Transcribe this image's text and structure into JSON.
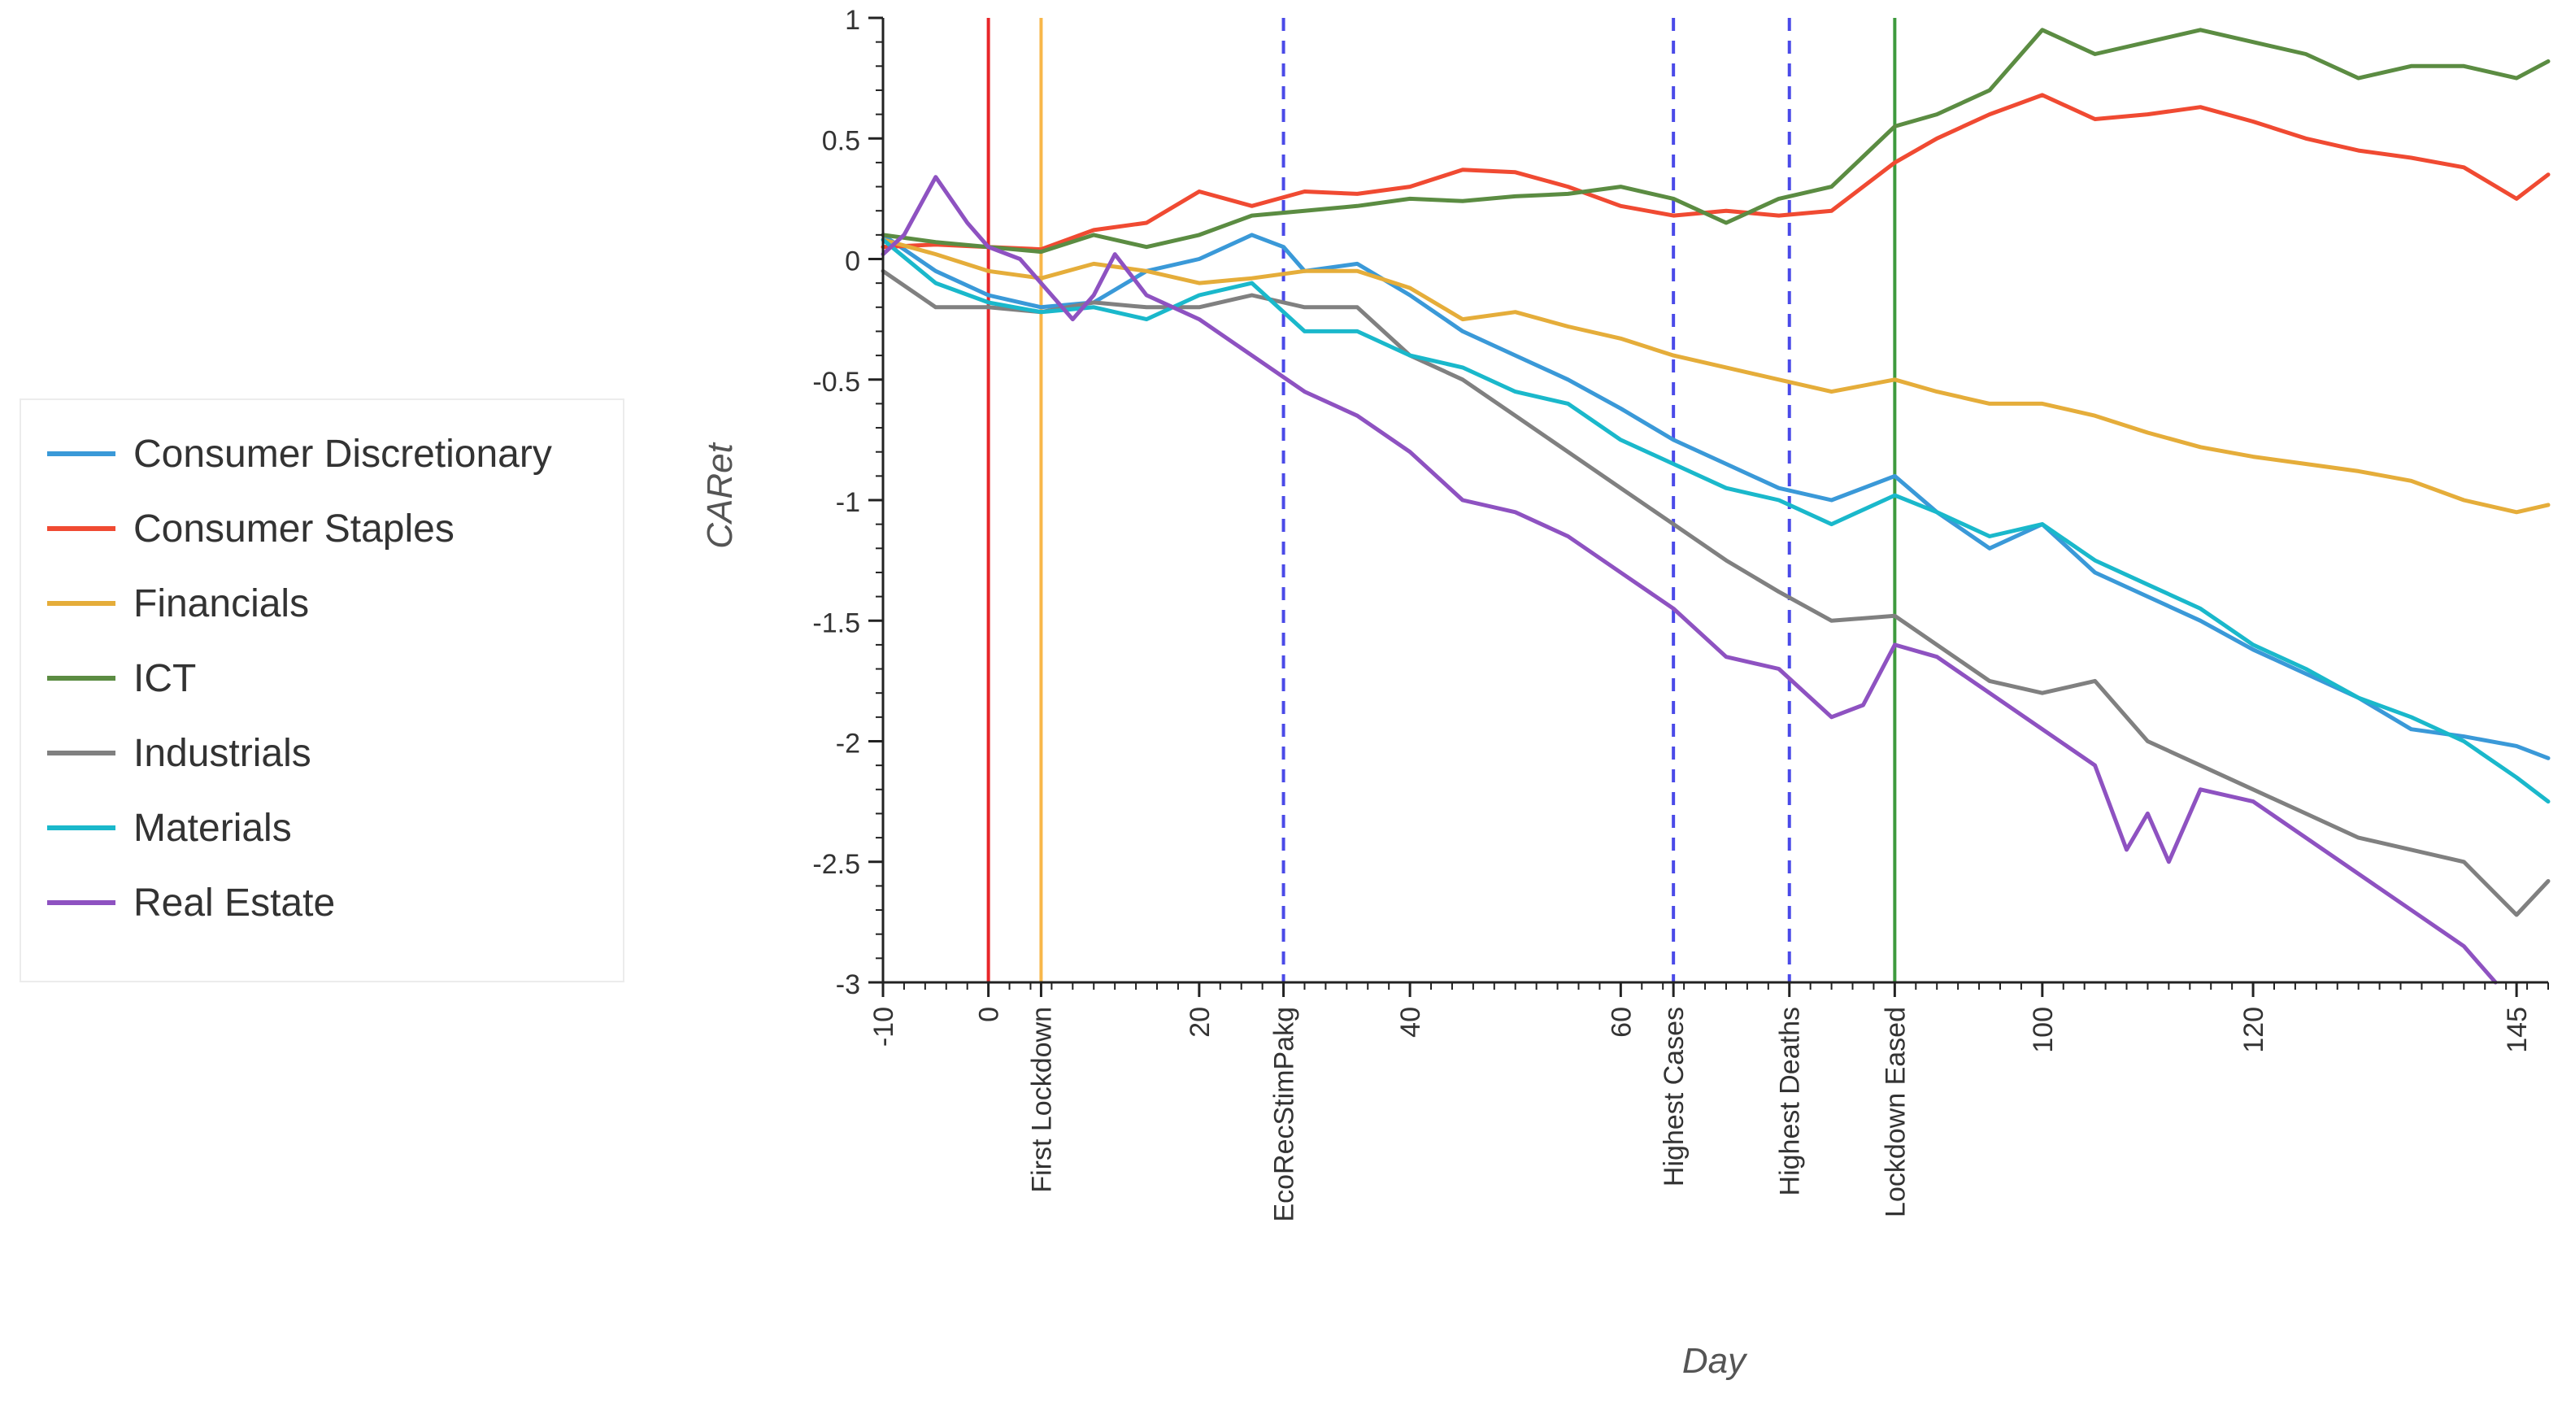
{
  "chart_data": {
    "type": "line",
    "title": "",
    "xlabel": "Day",
    "ylabel": "CARet",
    "xlim": [
      -10,
      148
    ],
    "ylim": [
      -3,
      1
    ],
    "x_ticks": [
      -10,
      0,
      20,
      40,
      60,
      100,
      120,
      145
    ],
    "y_ticks": [
      1,
      0.5,
      0,
      -0.5,
      -1,
      -1.5,
      -2,
      -2.5,
      -3
    ],
    "y_tick_labels": [
      "1",
      "0.5",
      "0",
      "-0.5",
      "-1",
      "-1.5",
      "-2",
      "-2.5",
      "-3"
    ],
    "grid": false,
    "legend_position": "left",
    "events": [
      {
        "day": 0,
        "label": "",
        "color": "#e8262a",
        "style": "solid"
      },
      {
        "day": 5,
        "label": "First Lockdown",
        "color": "#f8b74a",
        "style": "solid"
      },
      {
        "day": 28,
        "label": "EcoRecStimPakg",
        "color": "#4a4ae8",
        "style": "dashed"
      },
      {
        "day": 65,
        "label": "Highest Cases",
        "color": "#4a4ae8",
        "style": "dashed"
      },
      {
        "day": 76,
        "label": "Highest Deaths",
        "color": "#4a4ae8",
        "style": "dashed"
      },
      {
        "day": 86,
        "label": "Lockdown Eased",
        "color": "#3e9a3e",
        "style": "solid"
      }
    ],
    "series": [
      {
        "name": "Consumer Discretionary",
        "color": "#3a99d8",
        "x": [
          -10,
          -5,
          0,
          5,
          10,
          15,
          20,
          25,
          28,
          30,
          35,
          40,
          45,
          50,
          55,
          60,
          65,
          70,
          75,
          80,
          86,
          90,
          95,
          100,
          105,
          110,
          115,
          120,
          125,
          130,
          135,
          140,
          145,
          148
        ],
        "y": [
          0.1,
          -0.05,
          -0.15,
          -0.2,
          -0.18,
          -0.05,
          0,
          0.1,
          0.05,
          -0.05,
          -0.02,
          -0.15,
          -0.3,
          -0.4,
          -0.5,
          -0.62,
          -0.75,
          -0.85,
          -0.95,
          -1.0,
          -0.9,
          -1.05,
          -1.2,
          -1.1,
          -1.3,
          -1.4,
          -1.5,
          -1.62,
          -1.72,
          -1.82,
          -1.95,
          -1.98,
          -2.02,
          -2.07
        ]
      },
      {
        "name": "Consumer Staples",
        "color": "#f04a32",
        "x": [
          -10,
          -5,
          0,
          5,
          10,
          15,
          20,
          25,
          30,
          35,
          40,
          45,
          50,
          55,
          60,
          65,
          70,
          75,
          80,
          86,
          90,
          95,
          100,
          105,
          110,
          115,
          120,
          125,
          130,
          135,
          140,
          145,
          148
        ],
        "y": [
          0.05,
          0.06,
          0.05,
          0.04,
          0.12,
          0.15,
          0.28,
          0.22,
          0.28,
          0.27,
          0.3,
          0.37,
          0.36,
          0.3,
          0.22,
          0.18,
          0.2,
          0.18,
          0.2,
          0.4,
          0.5,
          0.6,
          0.68,
          0.58,
          0.6,
          0.63,
          0.57,
          0.5,
          0.45,
          0.42,
          0.38,
          0.25,
          0.35
        ]
      },
      {
        "name": "Financials",
        "color": "#e5ad3a",
        "x": [
          -10,
          -5,
          0,
          5,
          10,
          15,
          20,
          25,
          30,
          35,
          40,
          45,
          50,
          55,
          60,
          65,
          70,
          75,
          80,
          86,
          90,
          95,
          100,
          105,
          110,
          115,
          120,
          125,
          130,
          135,
          140,
          145,
          148
        ],
        "y": [
          0.08,
          0.02,
          -0.05,
          -0.08,
          -0.02,
          -0.05,
          -0.1,
          -0.08,
          -0.05,
          -0.05,
          -0.12,
          -0.25,
          -0.22,
          -0.28,
          -0.33,
          -0.4,
          -0.45,
          -0.5,
          -0.55,
          -0.5,
          -0.55,
          -0.6,
          -0.6,
          -0.65,
          -0.72,
          -0.78,
          -0.82,
          -0.85,
          -0.88,
          -0.92,
          -1.0,
          -1.05,
          -1.02
        ]
      },
      {
        "name": "ICT",
        "color": "#5b8c42",
        "x": [
          -10,
          -5,
          0,
          5,
          10,
          15,
          20,
          25,
          30,
          35,
          40,
          45,
          50,
          55,
          60,
          65,
          70,
          75,
          80,
          86,
          90,
          95,
          100,
          105,
          110,
          115,
          120,
          125,
          130,
          135,
          140,
          145,
          148
        ],
        "y": [
          0.1,
          0.07,
          0.05,
          0.03,
          0.1,
          0.05,
          0.1,
          0.18,
          0.2,
          0.22,
          0.25,
          0.24,
          0.26,
          0.27,
          0.3,
          0.25,
          0.15,
          0.25,
          0.3,
          0.55,
          0.6,
          0.7,
          0.95,
          0.85,
          0.9,
          0.95,
          0.9,
          0.85,
          0.75,
          0.8,
          0.8,
          0.75,
          0.82
        ]
      },
      {
        "name": "Industrials",
        "color": "#808080",
        "x": [
          -10,
          -5,
          0,
          5,
          10,
          15,
          20,
          25,
          30,
          35,
          40,
          45,
          50,
          55,
          60,
          65,
          70,
          75,
          80,
          86,
          90,
          95,
          100,
          105,
          110,
          115,
          120,
          125,
          130,
          135,
          140,
          145,
          148
        ],
        "y": [
          -0.05,
          -0.2,
          -0.2,
          -0.22,
          -0.18,
          -0.2,
          -0.2,
          -0.15,
          -0.2,
          -0.2,
          -0.4,
          -0.5,
          -0.65,
          -0.8,
          -0.95,
          -1.1,
          -1.25,
          -1.38,
          -1.5,
          -1.48,
          -1.6,
          -1.75,
          -1.8,
          -1.75,
          -2.0,
          -2.1,
          -2.2,
          -2.3,
          -2.4,
          -2.45,
          -2.5,
          -2.72,
          -2.58
        ]
      },
      {
        "name": "Materials",
        "color": "#1ab8cb",
        "x": [
          -10,
          -5,
          0,
          5,
          10,
          15,
          20,
          25,
          30,
          35,
          40,
          45,
          50,
          55,
          60,
          65,
          70,
          75,
          80,
          86,
          90,
          95,
          100,
          105,
          110,
          115,
          120,
          125,
          130,
          135,
          140,
          145,
          148
        ],
        "y": [
          0.08,
          -0.1,
          -0.18,
          -0.22,
          -0.2,
          -0.25,
          -0.15,
          -0.1,
          -0.3,
          -0.3,
          -0.4,
          -0.45,
          -0.55,
          -0.6,
          -0.75,
          -0.85,
          -0.95,
          -1.0,
          -1.1,
          -0.98,
          -1.05,
          -1.15,
          -1.1,
          -1.25,
          -1.35,
          -1.45,
          -1.6,
          -1.7,
          -1.82,
          -1.9,
          -2.0,
          -2.15,
          -2.25
        ]
      },
      {
        "name": "Real Estate",
        "color": "#8e52c1",
        "x": [
          -10,
          -8,
          -5,
          -2,
          0,
          3,
          5,
          8,
          10,
          12,
          15,
          20,
          25,
          30,
          35,
          40,
          45,
          50,
          55,
          60,
          65,
          70,
          75,
          80,
          83,
          86,
          90,
          95,
          100,
          105,
          108,
          110,
          112,
          115,
          120,
          125,
          130,
          135,
          140,
          143
        ],
        "y": [
          0.02,
          0.1,
          0.34,
          0.15,
          0.05,
          0.0,
          -0.1,
          -0.25,
          -0.15,
          0.02,
          -0.15,
          -0.25,
          -0.4,
          -0.55,
          -0.65,
          -0.8,
          -1.0,
          -1.05,
          -1.15,
          -1.3,
          -1.45,
          -1.65,
          -1.7,
          -1.9,
          -1.85,
          -1.6,
          -1.65,
          -1.8,
          -1.95,
          -2.1,
          -2.45,
          -2.3,
          -2.5,
          -2.2,
          -2.25,
          -2.4,
          -2.55,
          -2.7,
          -2.85,
          -3.0
        ]
      }
    ]
  }
}
